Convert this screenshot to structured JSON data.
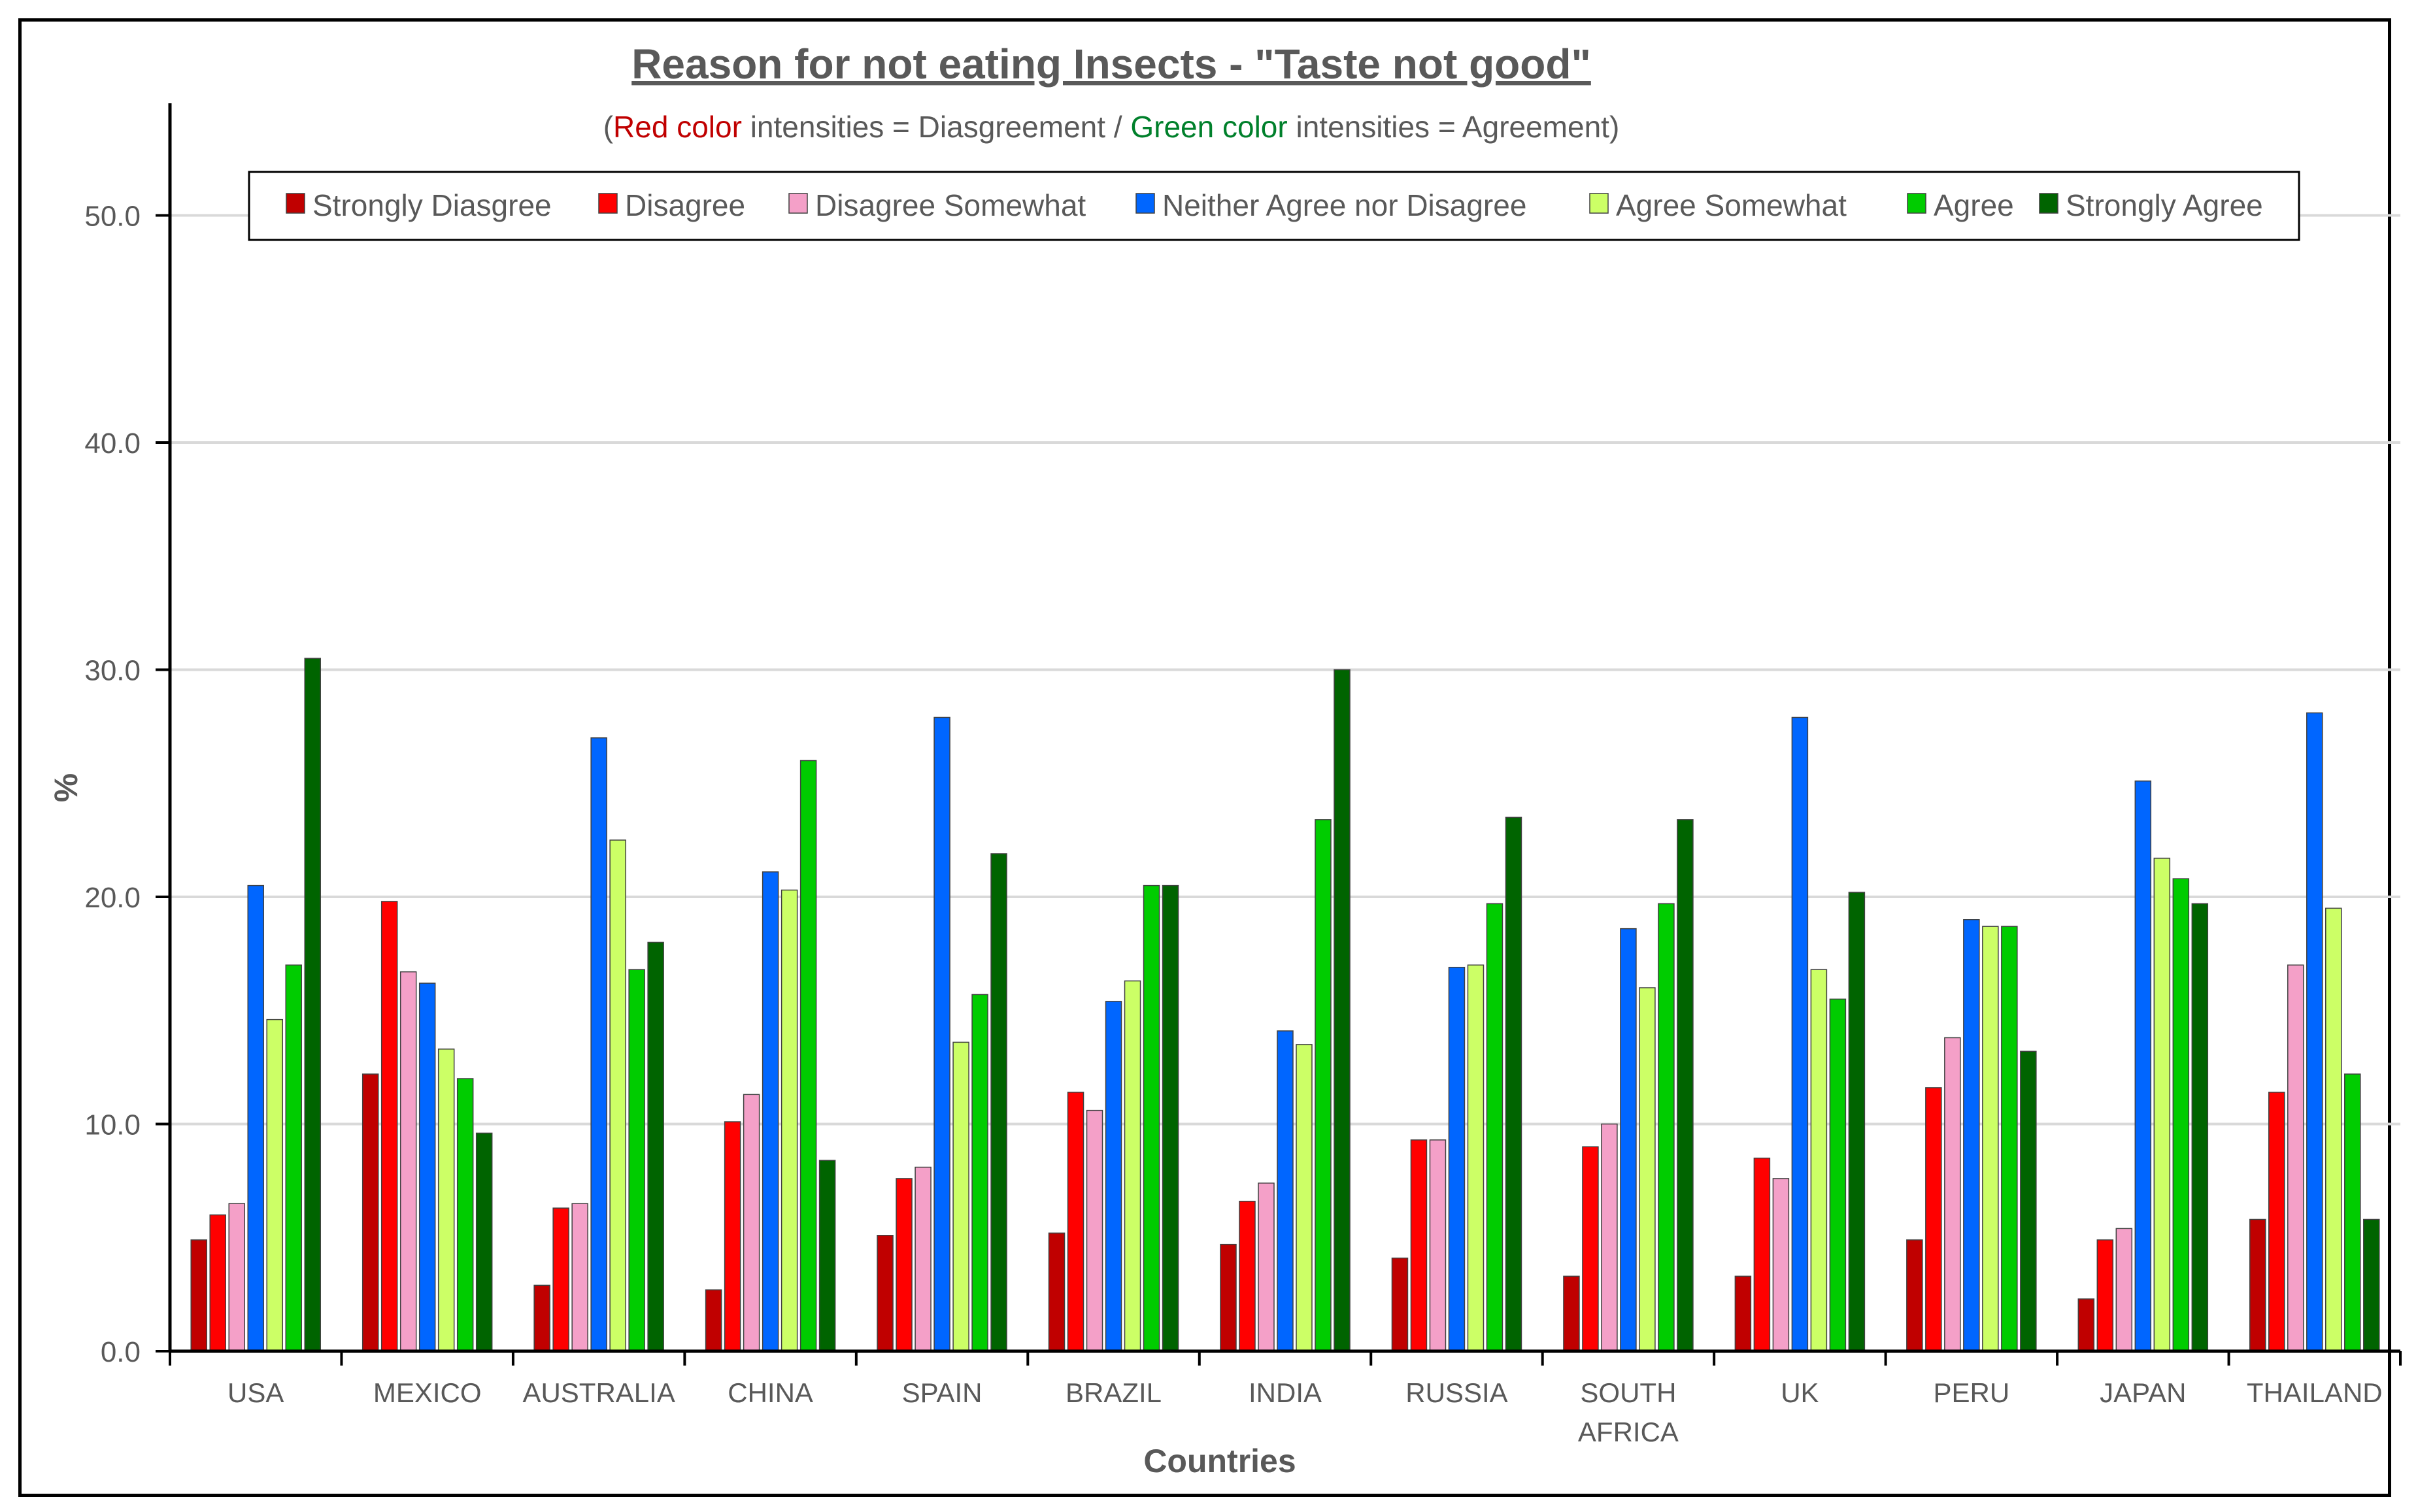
{
  "chart_data": {
    "type": "bar",
    "title": "Reason for not eating Insects - \"Taste not good\"",
    "subtitle": {
      "open": "(",
      "red_text": "Red color",
      "mid1": " intensities = Diasgreement / ",
      "green_text": "Green color",
      "mid2": " intensities = Agreement)"
    },
    "xlabel": "Countries",
    "ylabel": "%",
    "ylim": [
      0,
      55
    ],
    "yticks": [
      "0.0",
      "10.0",
      "20.0",
      "30.0",
      "40.0",
      "50.0"
    ],
    "ytick_values": [
      0,
      10,
      20,
      30,
      40,
      50
    ],
    "grid": true,
    "legend_position": "top",
    "categories": [
      [
        "USA"
      ],
      [
        "MEXICO"
      ],
      [
        "AUSTRALIA"
      ],
      [
        "CHINA"
      ],
      [
        "SPAIN"
      ],
      [
        "BRAZIL"
      ],
      [
        "INDIA"
      ],
      [
        "RUSSIA"
      ],
      [
        "SOUTH",
        "AFRICA"
      ],
      [
        "UK"
      ],
      [
        "PERU"
      ],
      [
        "JAPAN"
      ],
      [
        "THAILAND"
      ]
    ],
    "series": [
      {
        "name": "Strongly Diasgree",
        "color": "#c00000",
        "values": [
          4.9,
          12.2,
          2.9,
          2.7,
          5.1,
          5.2,
          4.7,
          4.1,
          3.3,
          3.3,
          4.9,
          2.3,
          5.8
        ]
      },
      {
        "name": "Disagree",
        "color": "#ff0000",
        "values": [
          6.0,
          19.8,
          6.3,
          10.1,
          7.6,
          11.4,
          6.6,
          9.3,
          9.0,
          8.5,
          11.6,
          4.9,
          11.4
        ]
      },
      {
        "name": "Disagree Somewhat",
        "color": "#f4a0c8",
        "values": [
          6.5,
          16.7,
          6.5,
          11.3,
          8.1,
          10.6,
          7.4,
          9.3,
          10.0,
          7.6,
          13.8,
          5.4,
          17.0
        ]
      },
      {
        "name": "Neither Agree nor Disagree",
        "color": "#0066ff",
        "values": [
          20.5,
          16.2,
          27.0,
          21.1,
          27.9,
          15.4,
          14.1,
          16.9,
          18.6,
          27.9,
          19.0,
          25.1,
          28.1
        ]
      },
      {
        "name": "Agree Somewhat",
        "color": "#ccff66",
        "values": [
          14.6,
          13.3,
          22.5,
          20.3,
          13.6,
          16.3,
          13.5,
          17.0,
          16.0,
          16.8,
          18.7,
          21.7,
          19.5
        ]
      },
      {
        "name": "Agree",
        "color": "#00cc00",
        "values": [
          17.0,
          12.0,
          16.8,
          26.0,
          15.7,
          20.5,
          23.4,
          19.7,
          19.7,
          15.5,
          18.7,
          20.8,
          12.2
        ]
      },
      {
        "name": "Strongly Agree",
        "color": "#006400",
        "values": [
          30.5,
          9.6,
          18.0,
          8.4,
          21.9,
          20.5,
          30.0,
          23.5,
          23.4,
          20.2,
          13.2,
          19.7,
          5.8
        ]
      }
    ],
    "colors": {
      "text": "#595959",
      "title": "#595959",
      "gridline": "#d9d9d9",
      "axis": "#000000",
      "subtitle_red": "#c00000",
      "subtitle_green": "#00802b"
    }
  }
}
